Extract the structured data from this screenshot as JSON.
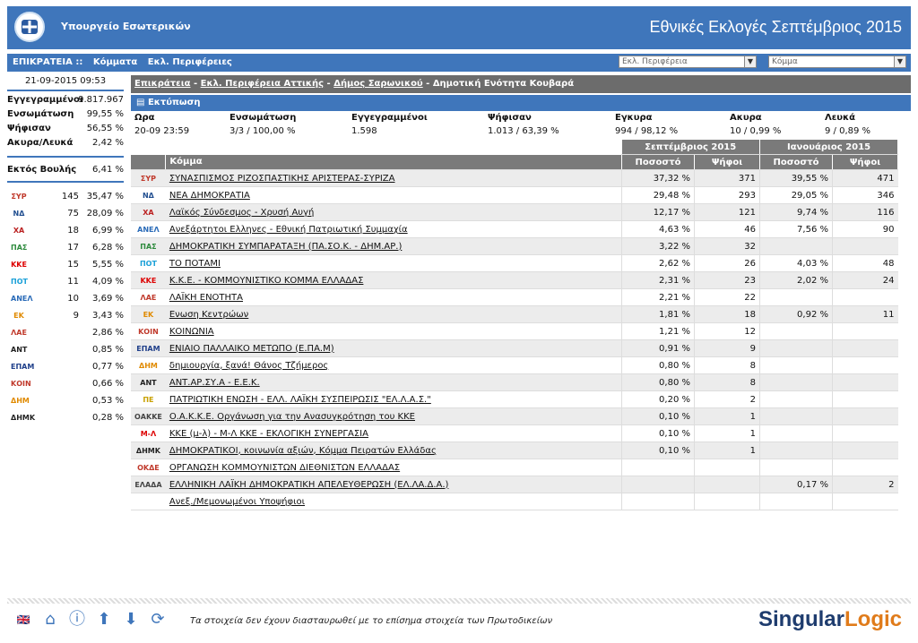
{
  "header": {
    "ministry": "Υπουργείο Εσωτερικών",
    "title": "Εθνικές Εκλογές Σεπτέμβριος 2015"
  },
  "nav": {
    "level": "ΕΠΙΚΡΑΤΕΙΑ ::",
    "parties": "Κόμματα",
    "regions": "Εκλ. Περιφέρειες",
    "region_select": "Εκλ. Περιφέρεια",
    "party_select": "Κόμμα"
  },
  "left": {
    "timestamp": "21-09-2015 09:53",
    "stats": [
      {
        "k": "Εγγεγραμμένοι",
        "v": "9.817.967"
      },
      {
        "k": "Ενσωμάτωση",
        "v": "99,55 %"
      },
      {
        "k": "Ψήφισαν",
        "v": "56,55 %"
      },
      {
        "k": "Ακυρα/Λευκά",
        "v": "2,42 %"
      }
    ],
    "outside": {
      "k": "Εκτός Βουλής",
      "v": "6,41 %"
    },
    "parties": [
      {
        "icon": "ΣΥΡ",
        "seats": "145",
        "pct": "35,47 %",
        "color": "#c0392b"
      },
      {
        "icon": "ΝΔ",
        "seats": "75",
        "pct": "28,09 %",
        "color": "#1f4d8f"
      },
      {
        "icon": "ΧΑ",
        "seats": "18",
        "pct": "6,99 %",
        "color": "#b22"
      },
      {
        "icon": "ΠΑΣ",
        "seats": "17",
        "pct": "6,28 %",
        "color": "#2e8b3e"
      },
      {
        "icon": "ΚΚΕ",
        "seats": "15",
        "pct": "5,55 %",
        "color": "#d00"
      },
      {
        "icon": "ΠΟΤ",
        "seats": "11",
        "pct": "4,09 %",
        "color": "#1aa0d8"
      },
      {
        "icon": "ΑΝΕΛ",
        "seats": "10",
        "pct": "3,69 %",
        "color": "#2a6bb8"
      },
      {
        "icon": "ΕΚ",
        "seats": "9",
        "pct": "3,43 %",
        "color": "#e08a00"
      },
      {
        "icon": "ΛΑΕ",
        "seats": "",
        "pct": "2,86 %",
        "color": "#c0392b"
      },
      {
        "icon": "ΑΝΤ",
        "seats": "",
        "pct": "0,85 %",
        "color": "#222"
      },
      {
        "icon": "ΕΠΑΜ",
        "seats": "",
        "pct": "0,77 %",
        "color": "#1f3f8a"
      },
      {
        "icon": "ΚΟΙΝ",
        "seats": "",
        "pct": "0,66 %",
        "color": "#c0392b"
      },
      {
        "icon": "ΔΗΜ",
        "seats": "",
        "pct": "0,53 %",
        "color": "#e08a00"
      },
      {
        "icon": "ΔΗΜΚ",
        "seats": "",
        "pct": "0,28 %",
        "color": "#222"
      }
    ]
  },
  "breadcrumb": {
    "a": "Επικράτεια",
    "b": "Εκλ. Περιφέρεια Αττικής",
    "c": "Δήμος Σαρωνικού",
    "d": "Δημοτική Ενότητα Κουβαρά",
    "sep": " - "
  },
  "print_label": "Εκτύπωση",
  "summary": {
    "headers": [
      "Ωρα",
      "Ενσωμάτωση",
      "Εγγεγραμμένοι",
      "Ψήφισαν",
      "Εγκυρα",
      "Ακυρα",
      "Λευκά"
    ],
    "values": [
      "20-09 23:59",
      "3/3 / 100,00 %",
      "1.598",
      "1.013 / 63,39 %",
      "994 / 98,12 %",
      "10 / 0,99 %",
      "9 / 0,89 %"
    ]
  },
  "table": {
    "group1": "Σεπτέμβριος 2015",
    "group2": "Ιανουάριος 2015",
    "col_party": "Κόμμα",
    "col_pct": "Ποσοστό",
    "col_votes": "Ψήφοι",
    "rows": [
      {
        "icon": "ΣΥΡ",
        "name": "ΣΥΝΑΣΠΙΣΜΟΣ ΡΙΖΟΣΠΑΣΤΙΚΗΣ ΑΡΙΣΤΕΡΑΣ-ΣΥΡΙΖΑ",
        "p1": "37,32 %",
        "v1": "371",
        "p2": "39,55 %",
        "v2": "471",
        "color": "#c0392b"
      },
      {
        "icon": "ΝΔ",
        "name": "ΝΕΑ ΔΗΜΟΚΡΑΤΙΑ",
        "p1": "29,48 %",
        "v1": "293",
        "p2": "29,05 %",
        "v2": "346",
        "color": "#1f4d8f"
      },
      {
        "icon": "ΧΑ",
        "name": "Λαϊκός Σύνδεσμος - Χρυσή Αυγή",
        "p1": "12,17 %",
        "v1": "121",
        "p2": "9,74 %",
        "v2": "116",
        "color": "#b22"
      },
      {
        "icon": "ΑΝΕΛ",
        "name": "Ανεξάρτητοι Ελληνες - Εθνική Πατριωτική Συμμαχία",
        "p1": "4,63 %",
        "v1": "46",
        "p2": "7,56 %",
        "v2": "90",
        "color": "#2a6bb8"
      },
      {
        "icon": "ΠΑΣ",
        "name": "ΔΗΜΟΚΡΑΤΙΚΗ ΣΥΜΠΑΡΑΤΑΞΗ (ΠΑ.ΣΟ.Κ. - ΔΗΜ.ΑΡ.)",
        "p1": "3,22 %",
        "v1": "32",
        "p2": "",
        "v2": "",
        "color": "#2e8b3e"
      },
      {
        "icon": "ΠΟΤ",
        "name": "ΤΟ ΠΟΤΑΜΙ",
        "p1": "2,62 %",
        "v1": "26",
        "p2": "4,03 %",
        "v2": "48",
        "color": "#1aa0d8"
      },
      {
        "icon": "ΚΚΕ",
        "name": "Κ.Κ.Ε. - ΚΟΜΜΟΥΝΙΣΤΙΚΟ ΚΟΜΜΑ ΕΛΛΑΔΑΣ",
        "p1": "2,31 %",
        "v1": "23",
        "p2": "2,02 %",
        "v2": "24",
        "color": "#d00"
      },
      {
        "icon": "ΛΑΕ",
        "name": "ΛΑΪΚΗ ΕΝΟΤΗΤΑ",
        "p1": "2,21 %",
        "v1": "22",
        "p2": "",
        "v2": "",
        "color": "#c0392b"
      },
      {
        "icon": "ΕΚ",
        "name": "Ενωση Κεντρώων",
        "p1": "1,81 %",
        "v1": "18",
        "p2": "0,92 %",
        "v2": "11",
        "color": "#e08a00"
      },
      {
        "icon": "ΚΟΙΝ",
        "name": "ΚΟΙΝΩΝΙΑ",
        "p1": "1,21 %",
        "v1": "12",
        "p2": "",
        "v2": "",
        "color": "#c0392b"
      },
      {
        "icon": "ΕΠΑΜ",
        "name": "ΕΝΙΑΙΟ ΠΑΛΛΑΙΚΟ ΜΕΤΩΠΟ (Ε.ΠΑ.Μ)",
        "p1": "0,91 %",
        "v1": "9",
        "p2": "",
        "v2": "",
        "color": "#1f3f8a"
      },
      {
        "icon": "ΔΗΜ",
        "name": "δημιουργία, ξανά! Θάνος Τζήμερος",
        "p1": "0,80 %",
        "v1": "8",
        "p2": "",
        "v2": "",
        "color": "#e08a00"
      },
      {
        "icon": "ΑΝΤ",
        "name": "ΑΝΤ.ΑΡ.ΣΥ.Α - Ε.Ε.Κ.",
        "p1": "0,80 %",
        "v1": "8",
        "p2": "",
        "v2": "",
        "color": "#222"
      },
      {
        "icon": "ΠΕ",
        "name": "ΠΑΤΡΙΩΤΙΚΗ ΕΝΩΣΗ - ΕΛΛ. ΛΑΪΚΗ ΣΥΣΠΕΙΡΩΣΙΣ \"ΕΛ.Λ.Α.Σ.\"",
        "p1": "0,20 %",
        "v1": "2",
        "p2": "",
        "v2": "",
        "color": "#c8a000"
      },
      {
        "icon": "ΟΑΚΚΕ",
        "name": "Ο.Α.Κ.Κ.Ε. Οργάνωση για την Ανασυγκρότηση του ΚΚΕ",
        "p1": "0,10 %",
        "v1": "1",
        "p2": "",
        "v2": "",
        "color": "#444"
      },
      {
        "icon": "Μ-Λ",
        "name": "ΚΚΕ (μ-λ) - Μ-Λ ΚΚΕ - ΕΚΛΟΓΙΚΗ ΣΥΝΕΡΓΑΣΙΑ",
        "p1": "0,10 %",
        "v1": "1",
        "p2": "",
        "v2": "",
        "color": "#d00"
      },
      {
        "icon": "ΔΗΜΚ",
        "name": "ΔΗΜΟΚΡΑΤΙΚΟΙ, κοινωνία αξιών, Κόμμα Πειρατών Ελλάδας",
        "p1": "0,10 %",
        "v1": "1",
        "p2": "",
        "v2": "",
        "color": "#222"
      },
      {
        "icon": "ΟΚΔΕ",
        "name": "ΟΡΓΑΝΩΣΗ ΚΟΜΜΟΥΝΙΣΤΩΝ ΔΙΕΘΝΙΣΤΩΝ ΕΛΛΑΔΑΣ",
        "p1": "",
        "v1": "",
        "p2": "",
        "v2": "",
        "color": "#c0392b"
      },
      {
        "icon": "ΕΛΑΔΑ",
        "name": "ΕΛΛΗΝΙΚΗ ΛΑΪΚΗ ΔΗΜΟΚΡΑΤΙΚΗ ΑΠΕΛΕΥΘΕΡΩΣΗ (ΕΛ.ΛΑ.Δ.Α.)",
        "p1": "",
        "v1": "",
        "p2": "0,17 %",
        "v2": "2",
        "color": "#444"
      },
      {
        "icon": "",
        "name": "Ανεξ./Μεμονωμένοι Υποψήφιοι",
        "p1": "",
        "v1": "",
        "p2": "",
        "v2": "",
        "color": "#444"
      }
    ]
  },
  "footer": {
    "note": "Τα στοιχεία δεν έχουν διασταυρωθεί με το επίσημα στοιχεία των Πρωτοδικείων",
    "brand_a": "Singular",
    "brand_b": "Logic"
  }
}
